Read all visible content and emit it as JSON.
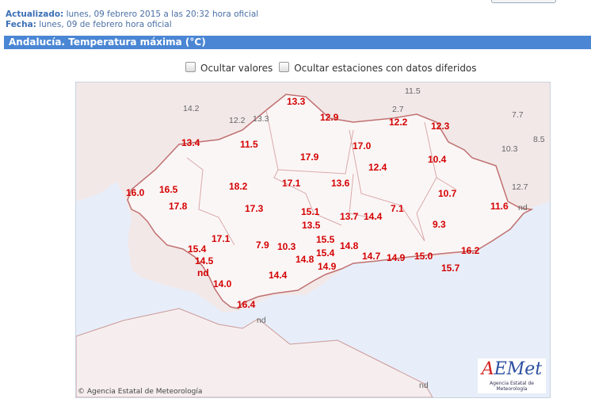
{
  "header": {
    "updated_label": "Actualizado:",
    "updated_value": "lunes, 09 febrero 2015 a las 20:32 hora oficial",
    "date_label": "Fecha:",
    "date_value": "lunes, 09 de febrero hora oficial"
  },
  "title": "Andalucía. Temperatura máxima (°C)",
  "options": {
    "hide_values": "Ocultar valores",
    "hide_deferred": "Ocultar estaciones con datos diferidos"
  },
  "colors": {
    "accent": "#4a86d4",
    "value": "#d40000",
    "outside_value": "#666666",
    "sea": "#e7eef9"
  },
  "values": [
    "13.3",
    "12.9",
    "12.2",
    "12.3",
    "13.4",
    "11.5",
    "17.0",
    "17.9",
    "12.4",
    "10.4",
    "16.0",
    "16.5",
    "18.2",
    "17.1",
    "13.6",
    "10.7",
    "11.6",
    "17.8",
    "17.3",
    "15.1",
    "13.7",
    "14.4",
    "7.1",
    "13.5",
    "9.3",
    "17.1",
    "7.9",
    "10.3",
    "15.4",
    "16.2",
    "14.8",
    "15.5",
    "14.7",
    "14.9",
    "15.0",
    "15.4",
    "14.8",
    "14.5",
    "nd",
    "15.7",
    "14.9",
    "14.4",
    "14.0",
    "16.4"
  ],
  "outside_values": [
    "14.2",
    "12.2",
    "13.3",
    "11.5",
    "2.7",
    "7.7",
    "8.5",
    "10.3",
    "12.7",
    "nd",
    "nd",
    "nd"
  ],
  "copyright": "© Agencia Estatal de Meteorología",
  "logo": {
    "text": "AEMet",
    "subtitle": "Agencia Estatal de Meteorología"
  }
}
